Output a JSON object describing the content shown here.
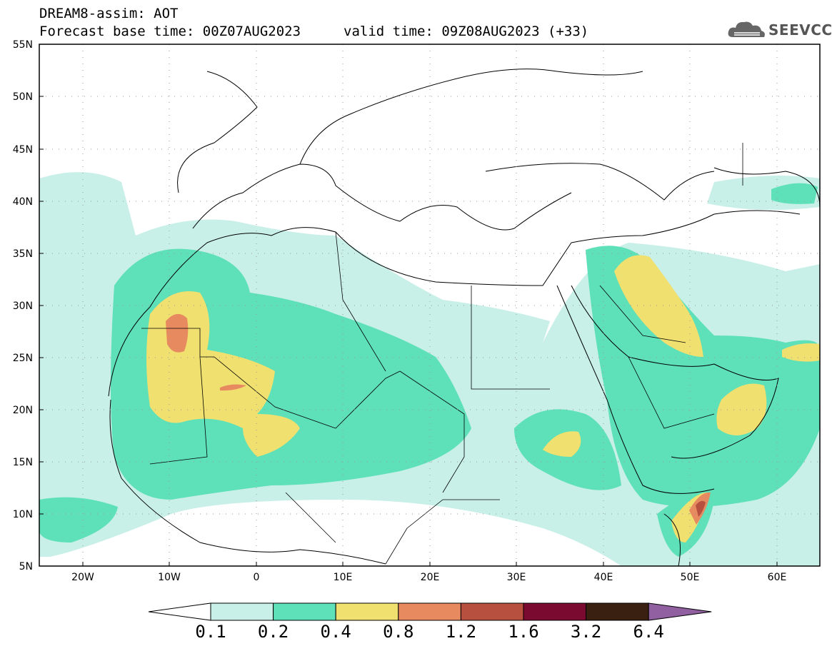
{
  "header": {
    "title": "DREAM8-assim: AOT",
    "base_time_label": "Forecast base time: 00Z07AUG2023",
    "valid_time_label": "valid time: 09Z08AUG2023 (+33)"
  },
  "logo": {
    "text": "SEEVCCC",
    "icon": "cloud-icon"
  },
  "map": {
    "lat_labels": [
      "55N",
      "50N",
      "45N",
      "40N",
      "35N",
      "30N",
      "25N",
      "20N",
      "15N",
      "10N",
      "5N"
    ],
    "lon_labels": [
      "20W",
      "10W",
      "0",
      "10E",
      "20E",
      "30E",
      "40E",
      "50E",
      "60E"
    ],
    "lat_range": [
      5,
      55
    ],
    "lon_range": [
      -25,
      65
    ],
    "gridlines": "dotted"
  },
  "colorbar": {
    "labels": [
      "0.1",
      "0.2",
      "0.4",
      "0.8",
      "1.2",
      "1.6",
      "3.2",
      "6.4"
    ],
    "colors": [
      "#c8f0e8",
      "#5ee0b8",
      "#f0e070",
      "#e88a60",
      "#b85040",
      "#7a0a30",
      "#3a2010",
      "#9060a0"
    ],
    "under_color": "#ffffff"
  }
}
